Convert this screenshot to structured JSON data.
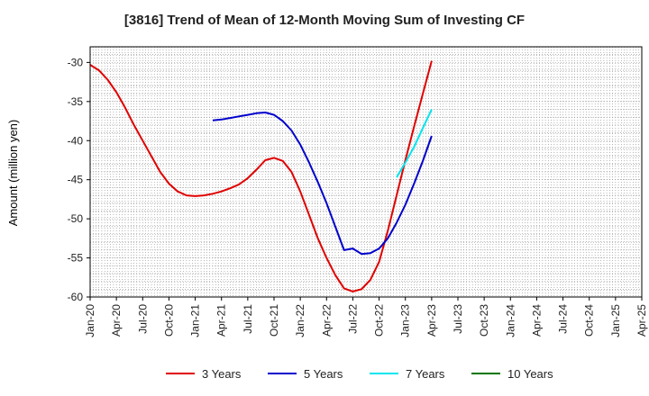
{
  "chart_data": {
    "type": "line",
    "title": "[3816]  Trend of Mean of 12-Month Moving Sum of Investing CF",
    "xlabel": "",
    "ylabel": "Amount (million yen)",
    "ylim": [
      -60,
      -28
    ],
    "yticks": [
      -30,
      -35,
      -40,
      -45,
      -50,
      -55,
      -60
    ],
    "categories": [
      "Jan-20",
      "Apr-20",
      "Jul-20",
      "Oct-20",
      "Jan-21",
      "Apr-21",
      "Jul-21",
      "Oct-21",
      "Jan-22",
      "Apr-22",
      "Jul-22",
      "Oct-22",
      "Jan-23",
      "Apr-23",
      "Jul-23",
      "Oct-23",
      "Jan-24",
      "Apr-24",
      "Jul-24",
      "Oct-24",
      "Jan-25",
      "Apr-25"
    ],
    "grid": true,
    "legend_position": "bottom",
    "series": [
      {
        "name": "3 Years",
        "color": "#e00000",
        "points": [
          [
            0,
            -30.3
          ],
          [
            1,
            -31.0
          ],
          [
            2,
            -32.2
          ],
          [
            3,
            -33.8
          ],
          [
            4,
            -35.8
          ],
          [
            5,
            -38.0
          ],
          [
            6,
            -40.0
          ],
          [
            7,
            -42.0
          ],
          [
            8,
            -44.0
          ],
          [
            9,
            -45.5
          ],
          [
            10,
            -46.5
          ],
          [
            11,
            -47.0
          ],
          [
            12,
            -47.1
          ],
          [
            13,
            -47.0
          ],
          [
            14,
            -46.8
          ],
          [
            15,
            -46.5
          ],
          [
            16,
            -46.1
          ],
          [
            17,
            -45.6
          ],
          [
            18,
            -44.8
          ],
          [
            19,
            -43.7
          ],
          [
            20,
            -42.5
          ],
          [
            21,
            -42.2
          ],
          [
            22,
            -42.6
          ],
          [
            23,
            -44.0
          ],
          [
            24,
            -46.5
          ],
          [
            25,
            -49.5
          ],
          [
            26,
            -52.5
          ],
          [
            27,
            -55.0
          ],
          [
            28,
            -57.2
          ],
          [
            29,
            -58.9
          ],
          [
            30,
            -59.3
          ],
          [
            31,
            -59.0
          ],
          [
            32,
            -57.8
          ],
          [
            33,
            -55.5
          ],
          [
            34,
            -51.5
          ],
          [
            35,
            -47.0
          ],
          [
            36,
            -42.5
          ],
          [
            37,
            -38.2
          ],
          [
            38,
            -34.0
          ],
          [
            39,
            -29.8
          ]
        ]
      },
      {
        "name": "5 Years",
        "color": "#0000cc",
        "points": [
          [
            14,
            -37.4
          ],
          [
            15,
            -37.3
          ],
          [
            16,
            -37.1
          ],
          [
            17,
            -36.9
          ],
          [
            18,
            -36.7
          ],
          [
            19,
            -36.5
          ],
          [
            20,
            -36.4
          ],
          [
            21,
            -36.7
          ],
          [
            22,
            -37.5
          ],
          [
            23,
            -38.7
          ],
          [
            24,
            -40.5
          ],
          [
            25,
            -42.8
          ],
          [
            26,
            -45.3
          ],
          [
            27,
            -48.0
          ],
          [
            28,
            -51.0
          ],
          [
            29,
            -54.0
          ],
          [
            30,
            -53.8
          ],
          [
            31,
            -54.5
          ],
          [
            32,
            -54.4
          ],
          [
            33,
            -53.8
          ],
          [
            34,
            -52.5
          ],
          [
            35,
            -50.5
          ],
          [
            36,
            -48.2
          ],
          [
            37,
            -45.5
          ],
          [
            38,
            -42.6
          ],
          [
            39,
            -39.4
          ]
        ]
      },
      {
        "name": "7 Years",
        "color": "#00e5ee",
        "points": [
          [
            35,
            -44.7
          ],
          [
            36,
            -42.8
          ],
          [
            37,
            -40.8
          ],
          [
            38,
            -38.4
          ],
          [
            39,
            -36.0
          ]
        ]
      },
      {
        "name": "10 Years",
        "color": "#007700",
        "points": []
      }
    ]
  }
}
